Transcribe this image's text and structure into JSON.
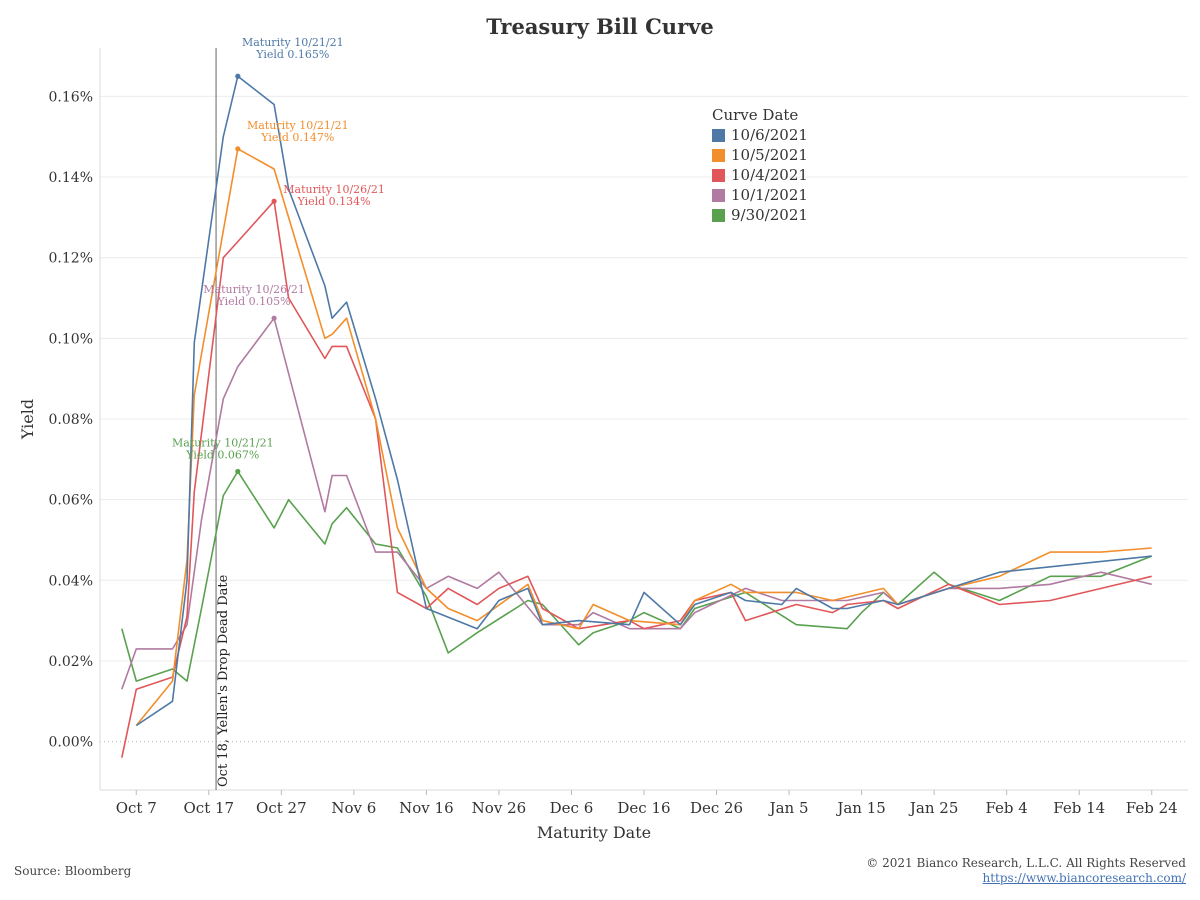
{
  "source": "Source: Bloomberg",
  "copyright": "© 2021 Bianco Research, L.L.C. All Rights Reserved",
  "url": "https://www.biancoresearch.com/",
  "chart_data": {
    "type": "line",
    "title": "Treasury Bill Curve",
    "xlabel": "Maturity Date",
    "ylabel": "Yield",
    "ylim": [
      -0.012,
      0.172
    ],
    "y_ticks": [
      0.0,
      0.02,
      0.04,
      0.06,
      0.08,
      0.1,
      0.12,
      0.14,
      0.16
    ],
    "y_tick_labels": [
      "0.00%",
      "0.02%",
      "0.04%",
      "0.06%",
      "0.08%",
      "0.10%",
      "0.12%",
      "0.14%",
      "0.16%"
    ],
    "x_range": [
      "2021-10-02",
      "2022-03-01"
    ],
    "x_ticks": [
      "2021-10-07",
      "2021-10-17",
      "2021-10-27",
      "2021-11-06",
      "2021-11-16",
      "2021-11-26",
      "2021-12-06",
      "2021-12-16",
      "2021-12-26",
      "2022-01-05",
      "2022-01-15",
      "2022-01-25",
      "2022-02-04",
      "2022-02-14",
      "2022-02-24"
    ],
    "x_tick_labels": [
      "Oct 7",
      "Oct 17",
      "Oct 27",
      "Nov 6",
      "Nov 16",
      "Nov 26",
      "Dec 6",
      "Dec 16",
      "Dec 26",
      "Jan 5",
      "Jan 15",
      "Jan 25",
      "Feb 4",
      "Feb 14",
      "Feb 24"
    ],
    "grid": "horizontal",
    "legend_title": "Curve Date",
    "legend_position": "top-right",
    "reference_line": {
      "x": "2021-10-18",
      "label": "Oct 18, Yellen's Drop Dead Date"
    },
    "series": [
      {
        "name": "10/6/2021",
        "color": "#4e79a7",
        "x": [
          "2021-10-07",
          "2021-10-12",
          "2021-10-14",
          "2021-10-15",
          "2021-10-19",
          "2021-10-21",
          "2021-10-26",
          "2021-10-28",
          "2021-11-02",
          "2021-11-03",
          "2021-11-05",
          "2021-11-09",
          "2021-11-12",
          "2021-11-16",
          "2021-11-23",
          "2021-11-26",
          "2021-11-30",
          "2021-12-02",
          "2021-12-07",
          "2021-12-14",
          "2021-12-16",
          "2021-12-21",
          "2021-12-23",
          "2021-12-28",
          "2021-12-30",
          "2022-01-04",
          "2022-01-06",
          "2022-01-11",
          "2022-01-13",
          "2022-01-18",
          "2022-01-20",
          "2022-01-27",
          "2022-02-03",
          "2022-02-24"
        ],
        "values": [
          0.004,
          0.01,
          0.04,
          0.099,
          0.15,
          0.165,
          0.158,
          0.137,
          0.113,
          0.105,
          0.109,
          0.085,
          0.065,
          0.033,
          0.028,
          0.035,
          0.038,
          0.029,
          0.03,
          0.029,
          0.037,
          0.029,
          0.034,
          0.037,
          0.035,
          0.034,
          0.038,
          0.033,
          0.033,
          0.035,
          0.034,
          0.038,
          0.042,
          0.046
        ]
      },
      {
        "name": "10/5/2021",
        "color": "#f28e2b",
        "x": [
          "2021-10-07",
          "2021-10-12",
          "2021-10-14",
          "2021-10-15",
          "2021-10-21",
          "2021-10-26",
          "2021-10-28",
          "2021-11-02",
          "2021-11-03",
          "2021-11-05",
          "2021-11-09",
          "2021-11-12",
          "2021-11-16",
          "2021-11-19",
          "2021-11-23",
          "2021-11-30",
          "2021-12-02",
          "2021-12-07",
          "2021-12-09",
          "2021-12-14",
          "2021-12-21",
          "2021-12-23",
          "2021-12-28",
          "2021-12-30",
          "2022-01-06",
          "2022-01-11",
          "2022-01-18",
          "2022-01-20",
          "2022-01-27",
          "2022-02-03",
          "2022-02-10",
          "2022-02-17",
          "2022-02-24"
        ],
        "values": [
          0.004,
          0.015,
          0.045,
          0.086,
          0.147,
          0.142,
          0.13,
          0.1,
          0.101,
          0.105,
          0.08,
          0.053,
          0.038,
          0.033,
          0.03,
          0.039,
          0.03,
          0.028,
          0.034,
          0.03,
          0.029,
          0.035,
          0.039,
          0.037,
          0.037,
          0.035,
          0.038,
          0.034,
          0.038,
          0.041,
          0.047,
          0.047,
          0.048
        ]
      },
      {
        "name": "10/4/2021",
        "color": "#e15759",
        "x": [
          "2021-10-05",
          "2021-10-07",
          "2021-10-12",
          "2021-10-14",
          "2021-10-15",
          "2021-10-19",
          "2021-10-21",
          "2021-10-26",
          "2021-10-28",
          "2021-11-02",
          "2021-11-03",
          "2021-11-05",
          "2021-11-09",
          "2021-11-12",
          "2021-11-16",
          "2021-11-19",
          "2021-11-23",
          "2021-11-26",
          "2021-11-30",
          "2021-12-02",
          "2021-12-07",
          "2021-12-14",
          "2021-12-16",
          "2021-12-21",
          "2021-12-23",
          "2021-12-28",
          "2021-12-30",
          "2022-01-06",
          "2022-01-11",
          "2022-01-13",
          "2022-01-18",
          "2022-01-20",
          "2022-01-27",
          "2022-02-03",
          "2022-02-10",
          "2022-02-24"
        ],
        "values": [
          -0.004,
          0.013,
          0.016,
          0.031,
          0.062,
          0.12,
          0.124,
          0.134,
          0.11,
          0.095,
          0.098,
          0.098,
          0.08,
          0.037,
          0.033,
          0.038,
          0.034,
          0.038,
          0.041,
          0.033,
          0.028,
          0.03,
          0.028,
          0.03,
          0.035,
          0.037,
          0.03,
          0.034,
          0.032,
          0.034,
          0.035,
          0.033,
          0.039,
          0.034,
          0.035,
          0.041
        ]
      },
      {
        "name": "10/1/2021",
        "color": "#b07aa1",
        "x": [
          "2021-10-05",
          "2021-10-07",
          "2021-10-12",
          "2021-10-14",
          "2021-10-16",
          "2021-10-19",
          "2021-10-21",
          "2021-10-26",
          "2021-11-02",
          "2021-11-03",
          "2021-11-05",
          "2021-11-09",
          "2021-11-12",
          "2021-11-16",
          "2021-11-19",
          "2021-11-23",
          "2021-11-26",
          "2021-12-02",
          "2021-12-07",
          "2021-12-09",
          "2021-12-14",
          "2021-12-21",
          "2021-12-23",
          "2021-12-30",
          "2022-01-04",
          "2022-01-06",
          "2022-01-13",
          "2022-01-18",
          "2022-01-20",
          "2022-01-27",
          "2022-02-03",
          "2022-02-10",
          "2022-02-17",
          "2022-02-24"
        ],
        "values": [
          0.013,
          0.023,
          0.023,
          0.029,
          0.055,
          0.085,
          0.093,
          0.105,
          0.057,
          0.066,
          0.066,
          0.047,
          0.047,
          0.038,
          0.041,
          0.038,
          0.042,
          0.029,
          0.029,
          0.032,
          0.028,
          0.028,
          0.032,
          0.038,
          0.035,
          0.035,
          0.035,
          0.037,
          0.034,
          0.038,
          0.038,
          0.039,
          0.042,
          0.039
        ]
      },
      {
        "name": "9/30/2021",
        "color": "#59a14f",
        "x": [
          "2021-10-05",
          "2021-10-07",
          "2021-10-12",
          "2021-10-14",
          "2021-10-16",
          "2021-10-19",
          "2021-10-21",
          "2021-10-26",
          "2021-10-28",
          "2021-11-02",
          "2021-11-03",
          "2021-11-05",
          "2021-11-09",
          "2021-11-12",
          "2021-11-16",
          "2021-11-19",
          "2021-11-23",
          "2021-11-30",
          "2021-12-02",
          "2021-12-07",
          "2021-12-09",
          "2021-12-14",
          "2021-12-16",
          "2021-12-21",
          "2021-12-23",
          "2021-12-30",
          "2022-01-06",
          "2022-01-13",
          "2022-01-15",
          "2022-01-18",
          "2022-01-20",
          "2022-01-25",
          "2022-01-27",
          "2022-02-03",
          "2022-02-10",
          "2022-02-17",
          "2022-02-24"
        ],
        "values": [
          0.028,
          0.015,
          0.018,
          0.015,
          0.033,
          0.061,
          0.067,
          0.053,
          0.06,
          0.049,
          0.054,
          0.058,
          0.049,
          0.048,
          0.036,
          0.022,
          0.027,
          0.035,
          0.034,
          0.024,
          0.027,
          0.03,
          0.032,
          0.028,
          0.033,
          0.037,
          0.029,
          0.028,
          0.032,
          0.037,
          0.034,
          0.042,
          0.039,
          0.035,
          0.041,
          0.041,
          0.046
        ]
      }
    ],
    "annotations": [
      {
        "series": "10/6/2021",
        "x": "2021-10-21",
        "y": 0.165,
        "lines": [
          "Maturity 10/21/21",
          "Yield 0.165%"
        ]
      },
      {
        "series": "10/5/2021",
        "x": "2021-10-21",
        "y": 0.147,
        "lines": [
          "Maturity 10/21/21",
          "Yield 0.147%"
        ]
      },
      {
        "series": "10/4/2021",
        "x": "2021-10-26",
        "y": 0.134,
        "lines": [
          "Maturity 10/26/21",
          "Yield 0.134%"
        ]
      },
      {
        "series": "10/1/2021",
        "x": "2021-10-26",
        "y": 0.105,
        "lines": [
          "Maturity 10/26/21",
          "Yield 0.105%"
        ]
      },
      {
        "series": "9/30/2021",
        "x": "2021-10-21",
        "y": 0.067,
        "lines": [
          "Maturity 10/21/21",
          "Yield 0.067%"
        ]
      }
    ]
  }
}
